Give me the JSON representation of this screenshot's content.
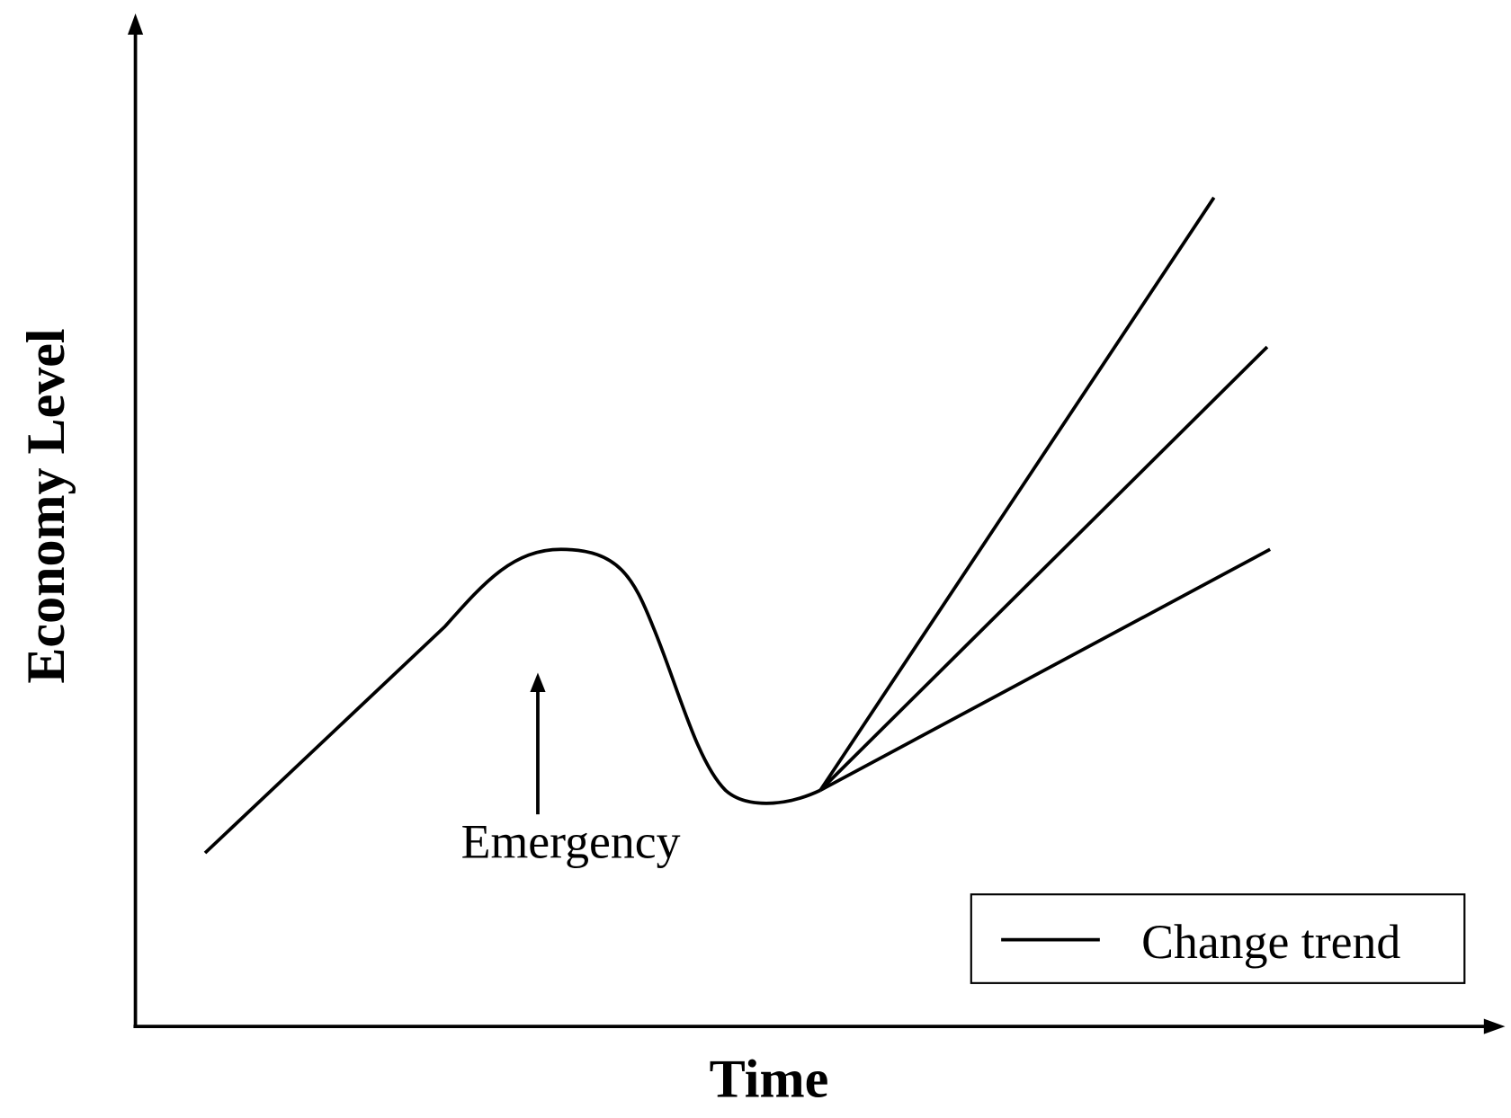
{
  "y_axis_label": "Economy Level",
  "x_axis_label": "Time",
  "annotation": "Emergency",
  "legend": {
    "label": "Change trend"
  }
}
